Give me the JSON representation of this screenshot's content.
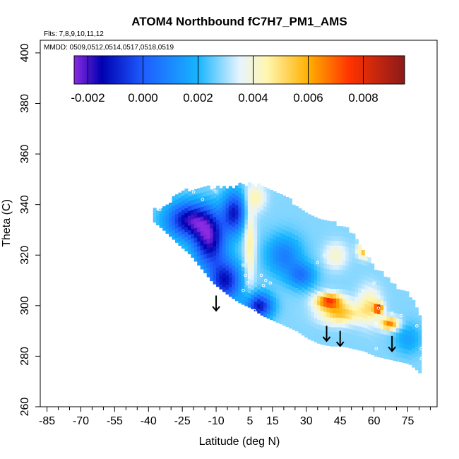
{
  "chart_data": {
    "type": "heatmap",
    "title": "ATOM4 Northbound fC7H7_PM1_AMS",
    "flights_note": "Flts: 7,8,9,10,11,12",
    "dates_note": "MMDD: 0509,0512,0514,0517,0518,0519",
    "xlabel": "Latitude (deg N)",
    "ylabel": "Theta (C)",
    "xlim": [
      -88,
      88
    ],
    "ylim": [
      260,
      405
    ],
    "x_ticks": [
      -85,
      -70,
      -55,
      -40,
      -25,
      -10,
      5,
      15,
      30,
      45,
      60,
      75
    ],
    "x_minor_ticks": [
      -80,
      -75,
      -65,
      -60,
      -50,
      -45,
      -35,
      -30,
      -20,
      -15,
      -5,
      0,
      10,
      20,
      25,
      35,
      40,
      50,
      55,
      65,
      70,
      80,
      85
    ],
    "x_tick_labels": [
      "-85",
      "-70",
      "-55",
      "-40",
      "-25",
      "-10",
      "5",
      "15",
      "30",
      "45",
      "60",
      "75"
    ],
    "y_ticks": [
      260,
      280,
      300,
      320,
      340,
      360,
      380,
      400
    ],
    "y_tick_labels": [
      "260",
      "280",
      "300",
      "320",
      "340",
      "360",
      "380",
      "400"
    ],
    "colorbar": {
      "min": -0.0025,
      "max": 0.0095,
      "ticks": [
        -0.002,
        0.0,
        0.002,
        0.004,
        0.006,
        0.008
      ],
      "tick_labels": [
        "-0.002",
        "0.000",
        "0.002",
        "0.004",
        "0.006",
        "0.008"
      ],
      "gradient_stops": [
        {
          "v": -0.0025,
          "c": "#8a2be2"
        },
        {
          "v": -0.0015,
          "c": "#0000b0"
        },
        {
          "v": 0.0,
          "c": "#1e5cff"
        },
        {
          "v": 0.002,
          "c": "#17b5ff"
        },
        {
          "v": 0.0035,
          "c": "#e6f4ff"
        },
        {
          "v": 0.0045,
          "c": "#fff6b0"
        },
        {
          "v": 0.006,
          "c": "#ffb000"
        },
        {
          "v": 0.0075,
          "c": "#ff3300"
        },
        {
          "v": 0.0095,
          "c": "#8b1a1a"
        }
      ]
    },
    "field": {
      "description": "interpolated curtain of fC7H7 concentration vs latitude and theta",
      "background_value": 0.0028,
      "features": [
        {
          "lat": -22,
          "theta": 334,
          "value": -0.0016,
          "lat_scale": 10,
          "theta_scale": 7
        },
        {
          "lat": -13,
          "theta": 326,
          "value": -0.0017,
          "lat_scale": 7,
          "theta_scale": 10
        },
        {
          "lat": -6,
          "theta": 310,
          "value": -0.0012,
          "lat_scale": 7,
          "theta_scale": 8
        },
        {
          "lat": -2,
          "theta": 337,
          "value": -0.001,
          "lat_scale": 5,
          "theta_scale": 8
        },
        {
          "lat": 9,
          "theta": 300,
          "value": -0.0012,
          "lat_scale": 6,
          "theta_scale": 5
        },
        {
          "lat": 5,
          "theta": 325,
          "value": 0.0047,
          "lat_scale": 2.5,
          "theta_scale": 18
        },
        {
          "lat": 8,
          "theta": 343,
          "value": 0.0043,
          "lat_scale": 4,
          "theta_scale": 5
        },
        {
          "lat": 20,
          "theta": 320,
          "value": 0.0008,
          "lat_scale": 8,
          "theta_scale": 8
        },
        {
          "lat": 40,
          "theta": 302,
          "value": 0.0072,
          "lat_scale": 6,
          "theta_scale": 3
        },
        {
          "lat": 45,
          "theta": 297,
          "value": 0.0056,
          "lat_scale": 9,
          "theta_scale": 4
        },
        {
          "lat": 58,
          "theta": 300,
          "value": 0.0048,
          "lat_scale": 5,
          "theta_scale": 7
        },
        {
          "lat": 62,
          "theta": 299,
          "value": 0.0075,
          "lat_scale": 2,
          "theta_scale": 2
        },
        {
          "lat": 67,
          "theta": 293,
          "value": 0.0067,
          "lat_scale": 4,
          "theta_scale": 2.5
        },
        {
          "lat": 56,
          "theta": 322,
          "value": 0.006,
          "lat_scale": 3,
          "theta_scale": 3
        },
        {
          "lat": 43,
          "theta": 320,
          "value": 0.0042,
          "lat_scale": 5,
          "theta_scale": 5
        },
        {
          "lat": 28,
          "theta": 312,
          "value": 0.0007,
          "lat_scale": 6,
          "theta_scale": 5
        },
        {
          "lat": 75,
          "theta": 287,
          "value": 0.0016,
          "lat_scale": 6,
          "theta_scale": 6
        }
      ],
      "envelope": [
        {
          "lat": -38,
          "theta_min": 333,
          "theta_max": 337
        },
        {
          "lat": -34,
          "theta_min": 330,
          "theta_max": 338
        },
        {
          "lat": -27,
          "theta_min": 324,
          "theta_max": 344
        },
        {
          "lat": -22,
          "theta_min": 320,
          "theta_max": 345
        },
        {
          "lat": -12,
          "theta_min": 309,
          "theta_max": 346
        },
        {
          "lat": -5,
          "theta_min": 304,
          "theta_max": 346
        },
        {
          "lat": 0,
          "theta_min": 301,
          "theta_max": 347
        },
        {
          "lat": 5,
          "theta_min": 299,
          "theta_max": 347
        },
        {
          "lat": 10,
          "theta_min": 296,
          "theta_max": 347
        },
        {
          "lat": 15,
          "theta_min": 294,
          "theta_max": 345
        },
        {
          "lat": 20,
          "theta_min": 292,
          "theta_max": 342
        },
        {
          "lat": 25,
          "theta_min": 290,
          "theta_max": 339
        },
        {
          "lat": 30,
          "theta_min": 287,
          "theta_max": 336
        },
        {
          "lat": 35,
          "theta_min": 285,
          "theta_max": 334
        },
        {
          "lat": 40,
          "theta_min": 284,
          "theta_max": 332
        },
        {
          "lat": 45,
          "theta_min": 284,
          "theta_max": 331
        },
        {
          "lat": 50,
          "theta_min": 283,
          "theta_max": 328
        },
        {
          "lat": 55,
          "theta_min": 282,
          "theta_max": 320
        },
        {
          "lat": 60,
          "theta_min": 280,
          "theta_max": 314
        },
        {
          "lat": 65,
          "theta_min": 279,
          "theta_max": 310
        },
        {
          "lat": 70,
          "theta_min": 278,
          "theta_max": 306
        },
        {
          "lat": 75,
          "theta_min": 277,
          "theta_max": 304
        },
        {
          "lat": 79,
          "theta_min": 274,
          "theta_max": 296
        },
        {
          "lat": 81,
          "theta_min": 272,
          "theta_max": 293
        }
      ]
    },
    "sample_points": [
      {
        "lat": -20,
        "theta": 345
      },
      {
        "lat": -10,
        "theta": 345
      },
      {
        "lat": -11,
        "theta": 346
      },
      {
        "lat": -16,
        "theta": 342
      },
      {
        "lat": 2,
        "theta": 316
      },
      {
        "lat": 3,
        "theta": 312
      },
      {
        "lat": 4,
        "theta": 309
      },
      {
        "lat": 2,
        "theta": 306
      },
      {
        "lat": 11,
        "theta": 308
      },
      {
        "lat": 10,
        "theta": 312
      },
      {
        "lat": 12,
        "theta": 310
      },
      {
        "lat": 14,
        "theta": 309
      },
      {
        "lat": 7,
        "theta": 298
      },
      {
        "lat": -7,
        "theta": 292
      },
      {
        "lat": 35,
        "theta": 317
      },
      {
        "lat": 38,
        "theta": 320
      },
      {
        "lat": 56,
        "theta": 323
      },
      {
        "lat": 60,
        "theta": 309
      },
      {
        "lat": 62,
        "theta": 299
      },
      {
        "lat": 61,
        "theta": 293
      },
      {
        "lat": 61,
        "theta": 283
      },
      {
        "lat": 68,
        "theta": 297
      },
      {
        "lat": 72,
        "theta": 296
      },
      {
        "lat": 79,
        "theta": 292
      },
      {
        "lat": 81,
        "theta": 283
      },
      {
        "lat": 81,
        "theta": 279
      },
      {
        "lat": -35,
        "theta": 338
      }
    ],
    "arrows": [
      {
        "lat": -10,
        "theta_top": 304,
        "theta_tip": 298
      },
      {
        "lat": 39,
        "theta_top": 292,
        "theta_tip": 286
      },
      {
        "lat": 45,
        "theta_top": 290,
        "theta_tip": 284
      },
      {
        "lat": 68,
        "theta_top": 288,
        "theta_tip": 282
      }
    ]
  }
}
